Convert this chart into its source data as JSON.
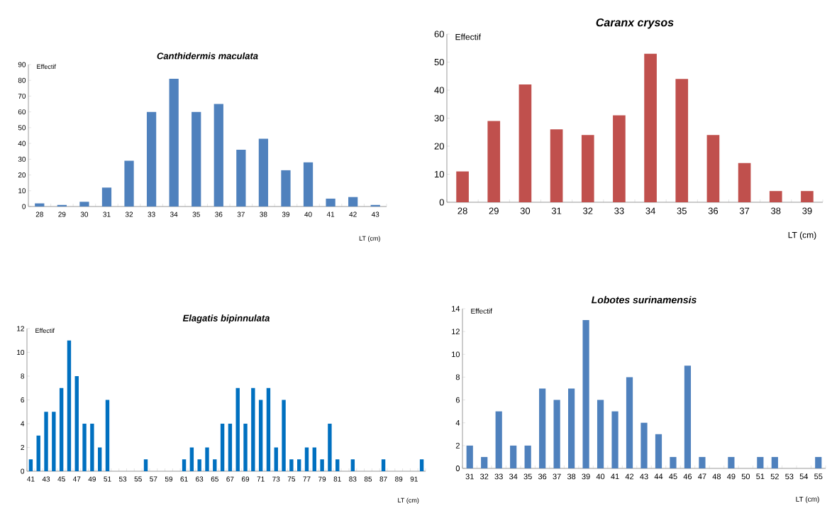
{
  "chart_data": [
    {
      "type": "bar",
      "title": "Canthidermis maculata",
      "ylabel": "Effectif",
      "xlabel": "LT (cm)",
      "categories": [
        "28",
        "29",
        "30",
        "31",
        "32",
        "33",
        "34",
        "35",
        "36",
        "37",
        "38",
        "39",
        "40",
        "41",
        "42",
        "43"
      ],
      "values": [
        2,
        1,
        3,
        12,
        29,
        60,
        81,
        60,
        65,
        36,
        43,
        23,
        28,
        5,
        6,
        1
      ],
      "color": "#4f81bd",
      "ylim": [
        0,
        90
      ],
      "yticks": [
        0,
        10,
        20,
        30,
        40,
        50,
        60,
        70,
        80,
        90
      ]
    },
    {
      "type": "bar",
      "title": "Caranx crysos",
      "ylabel": "Effectif",
      "xlabel": "LT (cm)",
      "categories": [
        "28",
        "29",
        "30",
        "31",
        "32",
        "33",
        "34",
        "35",
        "36",
        "37",
        "38",
        "39"
      ],
      "values": [
        11,
        29,
        42,
        26,
        24,
        31,
        53,
        44,
        24,
        14,
        4,
        4
      ],
      "color": "#c0504d",
      "ylim": [
        0,
        60
      ],
      "yticks": [
        0,
        10,
        20,
        30,
        40,
        50,
        60
      ]
    },
    {
      "type": "bar",
      "title": "Elagatis bipinnulata",
      "ylabel": "Effectif",
      "xlabel": "LT (cm)",
      "categories": [
        "41",
        null,
        "43",
        null,
        "45",
        null,
        "47",
        null,
        "49",
        null,
        "51",
        null,
        "53",
        null,
        "55",
        null,
        "57",
        null,
        "59",
        null,
        "61",
        null,
        "63",
        null,
        "65",
        null,
        "67",
        null,
        "69",
        null,
        "71",
        null,
        "73",
        null,
        "75",
        null,
        "77",
        null,
        "79",
        null,
        "81",
        null,
        "83",
        null,
        "85",
        null,
        "87",
        null,
        "89",
        null,
        "91",
        null
      ],
      "values": [
        1,
        3,
        5,
        5,
        7,
        11,
        8,
        4,
        4,
        2,
        6,
        0,
        0,
        0,
        0,
        1,
        0,
        0,
        0,
        0,
        1,
        2,
        1,
        2,
        1,
        4,
        4,
        7,
        4,
        7,
        6,
        7,
        2,
        6,
        1,
        1,
        2,
        2,
        1,
        4,
        1,
        0,
        1,
        0,
        0,
        0,
        1,
        0,
        0,
        0,
        0,
        1
      ],
      "color": "#0070c0",
      "ylim": [
        0,
        12
      ],
      "yticks": [
        0,
        2,
        4,
        6,
        8,
        10,
        12
      ]
    },
    {
      "type": "bar",
      "title": "Lobotes surinamensis",
      "ylabel": "Effectif",
      "xlabel": "LT (cm)",
      "categories": [
        "31",
        "32",
        "33",
        "34",
        "35",
        "36",
        "37",
        "38",
        "39",
        "40",
        "41",
        "42",
        "43",
        "44",
        "45",
        "46",
        "47",
        "48",
        "49",
        "50",
        "51",
        "52",
        "53",
        "54",
        "55"
      ],
      "values": [
        2,
        1,
        5,
        2,
        2,
        7,
        6,
        7,
        13,
        6,
        5,
        8,
        4,
        3,
        1,
        9,
        1,
        0,
        1,
        0,
        1,
        1,
        0,
        0,
        1
      ],
      "color": "#4f81bd",
      "ylim": [
        0,
        14
      ],
      "yticks": [
        0,
        2,
        4,
        6,
        8,
        10,
        12,
        14
      ]
    }
  ]
}
